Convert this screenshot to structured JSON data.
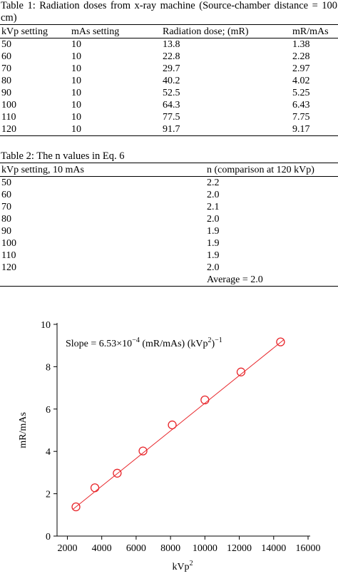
{
  "table1": {
    "caption": "Table 1: Radiation doses from x-ray machine (Source-chamber distance = 100 cm)",
    "header": [
      "kVp setting",
      "mAs setting",
      "Radiation dose; (mR)",
      "mR/mAs"
    ],
    "rows": [
      [
        "50",
        "10",
        "13.8",
        "1.38"
      ],
      [
        "60",
        "10",
        "22.8",
        "2.28"
      ],
      [
        "70",
        "10",
        "29.7",
        "2.97"
      ],
      [
        "80",
        "10",
        "40.2",
        "4.02"
      ],
      [
        "90",
        "10",
        "52.5",
        "5.25"
      ],
      [
        "100",
        "10",
        "64.3",
        "6.43"
      ],
      [
        "110",
        "10",
        "77.5",
        "7.75"
      ],
      [
        "120",
        "10",
        "91.7",
        "9.17"
      ]
    ]
  },
  "table2": {
    "caption": "Table 2: The n values in Eq. 6",
    "header": [
      "kVp setting, 10 mAs",
      "n (comparison at 120 kVp)"
    ],
    "rows": [
      [
        "50",
        "2.2"
      ],
      [
        "60",
        "2.0"
      ],
      [
        "70",
        "2.1"
      ],
      [
        "80",
        "2.0"
      ],
      [
        "90",
        "1.9"
      ],
      [
        "100",
        "1.9"
      ],
      [
        "110",
        "1.9"
      ],
      [
        "120",
        "2.0"
      ]
    ],
    "average": "Average = 2.0"
  },
  "chart_data": {
    "type": "scatter",
    "annotation": [
      "Slope = 6.53×10",
      "−4",
      " (mR/mAs) (kVp",
      "2",
      ")",
      "−1"
    ],
    "x_label": [
      "kVp",
      "2"
    ],
    "y_label": "mR/mAs",
    "series": [
      {
        "color": "#e8262b",
        "x": [
          2500,
          3600,
          4900,
          6400,
          8100,
          10000,
          12100,
          14400
        ],
        "values": [
          1.38,
          2.28,
          2.97,
          4.02,
          5.25,
          6.43,
          7.75,
          9.17
        ]
      }
    ],
    "fit": {
      "color": "#e8262b",
      "x": [
        2300,
        14600
      ],
      "y": [
        1.25,
        9.28
      ]
    },
    "xlim": [
      1400,
      16000
    ],
    "ylim": [
      0,
      10
    ],
    "xticks": [
      2000,
      4000,
      6000,
      8000,
      10000,
      12000,
      14000,
      16000
    ],
    "yticks": [
      0,
      2,
      4,
      6,
      8,
      10
    ]
  }
}
